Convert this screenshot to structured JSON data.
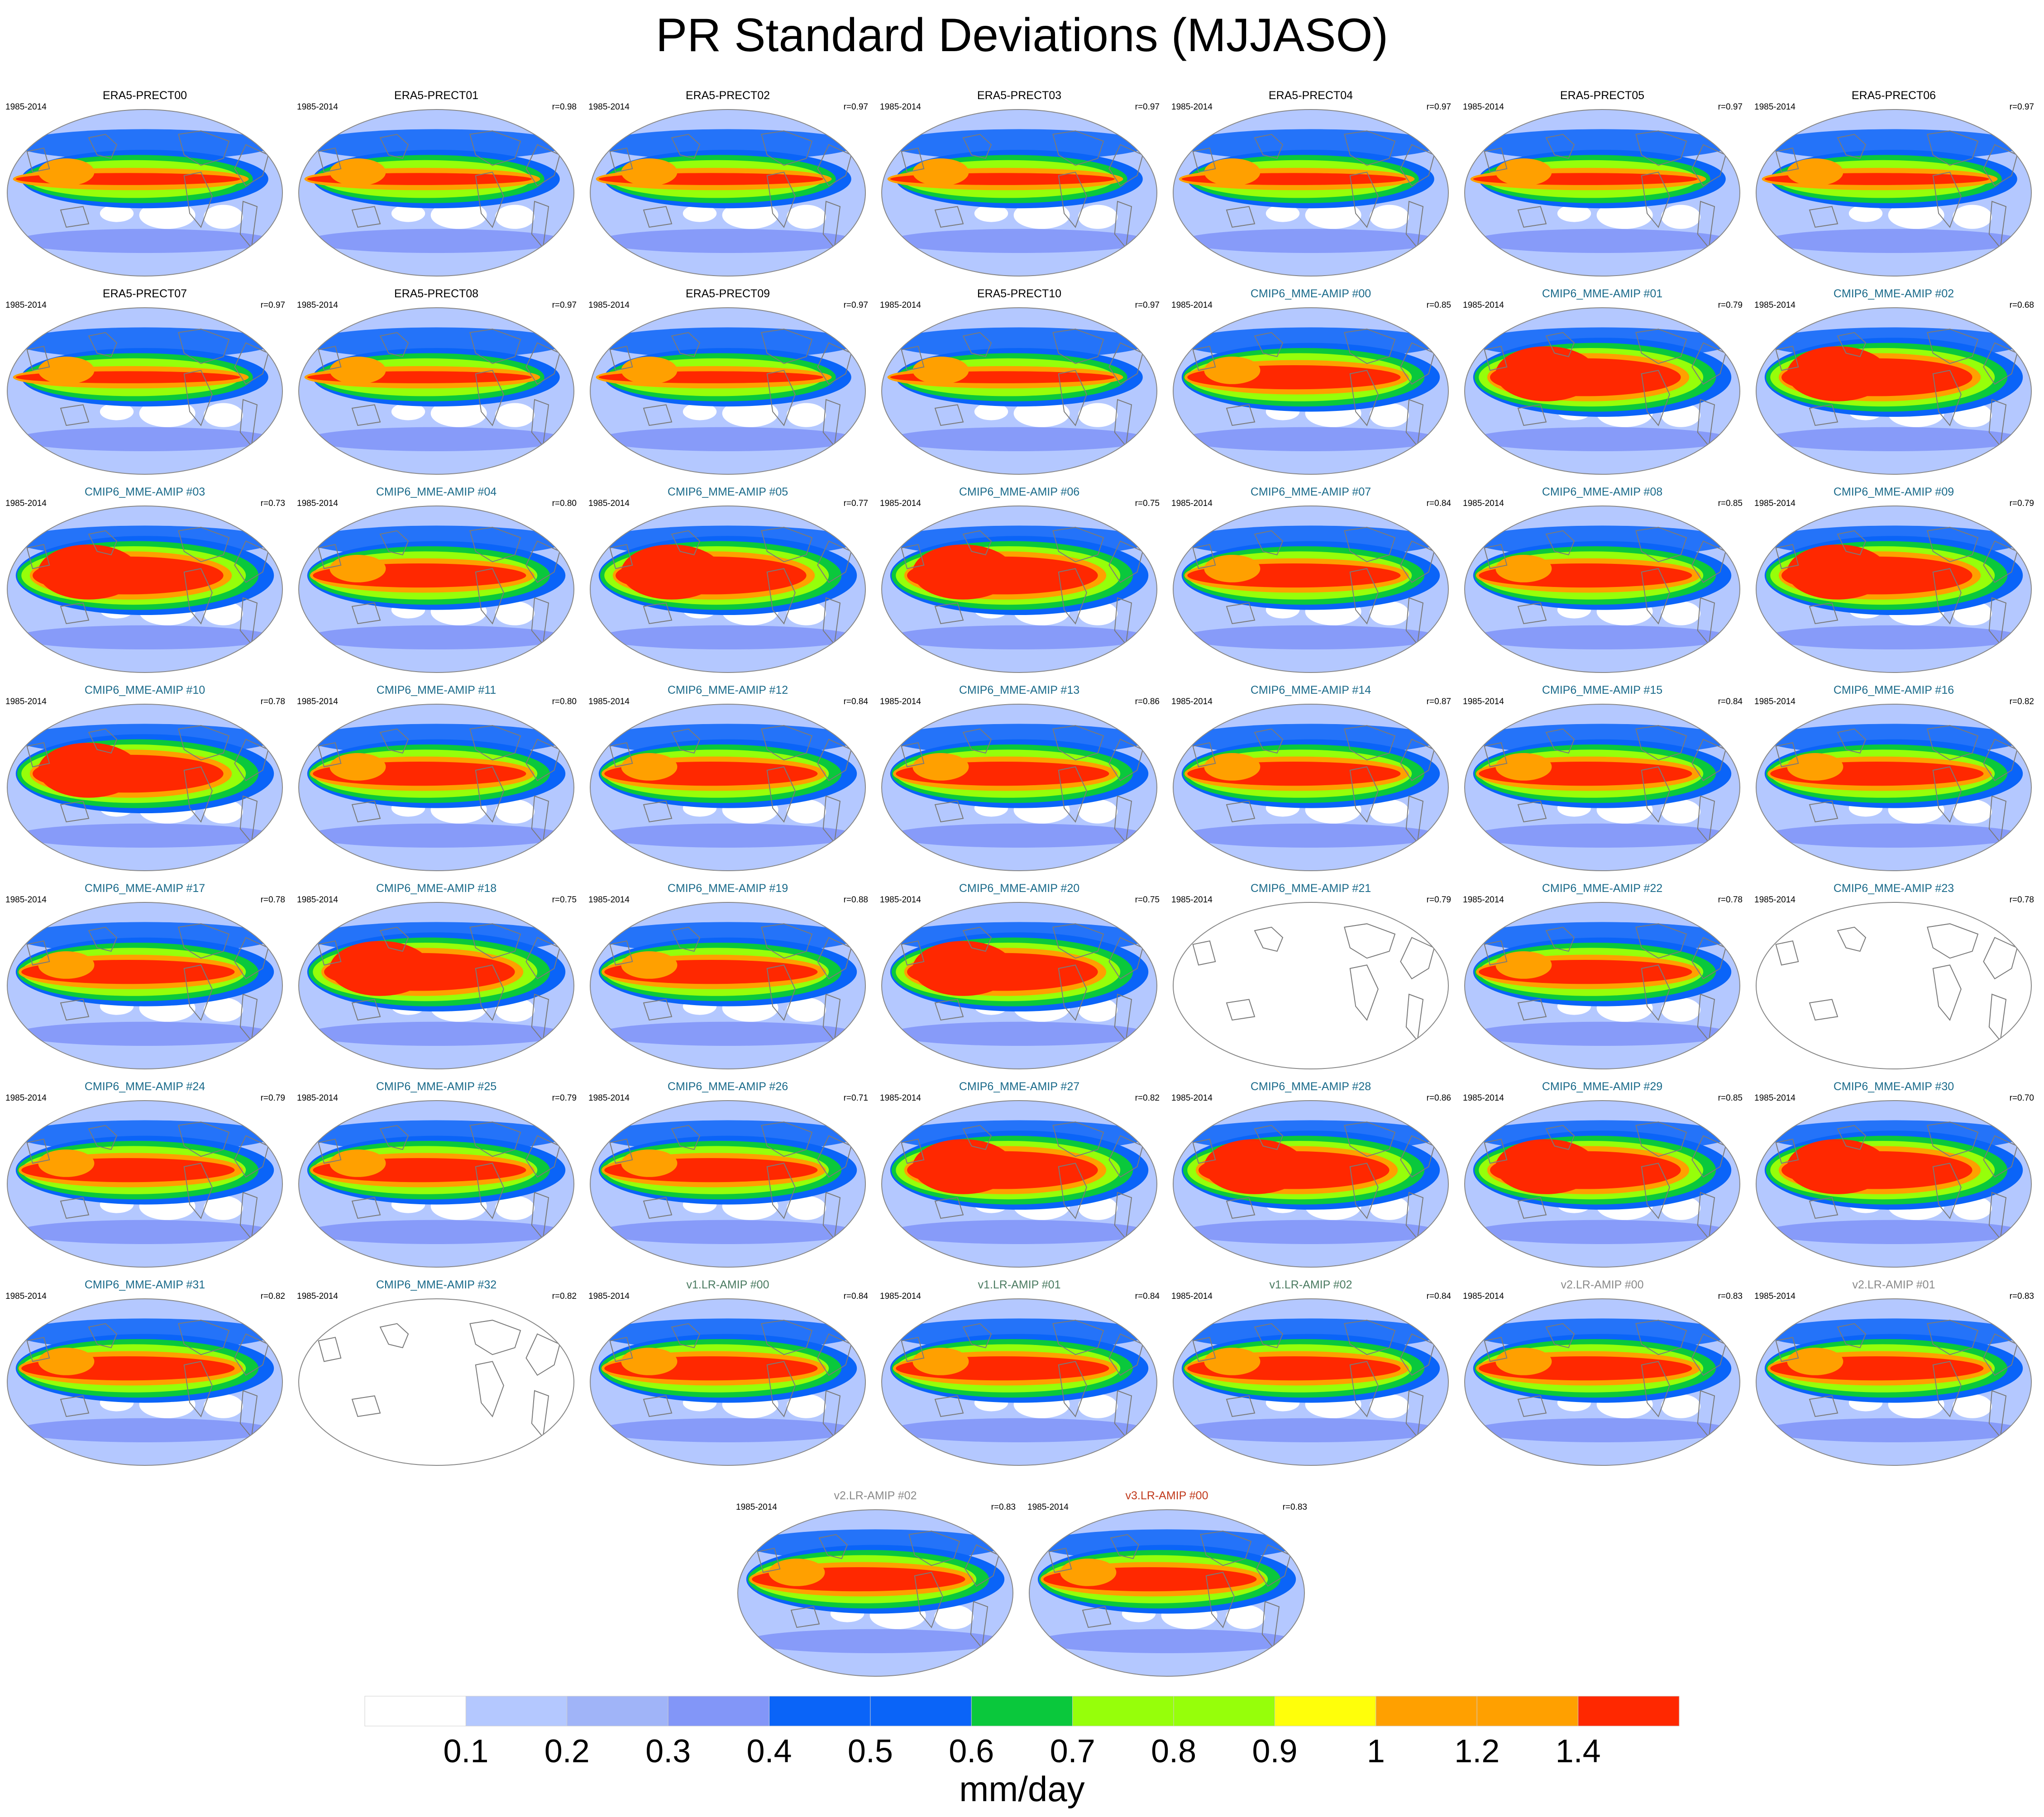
{
  "title": "PR Standard Deviations (MJJASO)",
  "colors": {
    "era5_title": "#000000",
    "cmip6_title": "#1a6a8a",
    "v1_title": "#4a7a60",
    "v2_title": "#8a8a8a",
    "v3_title": "#c0391b",
    "coast": "#7a7a7a"
  },
  "chart_data": {
    "type": "heatmap",
    "map_projection": "robinson",
    "period": "1985-2014",
    "units": "mm/day",
    "colorbar": {
      "levels": [
        "0.1",
        "0.2",
        "0.3",
        "0.4",
        "0.5",
        "0.6",
        "0.7",
        "0.8",
        "0.9",
        "1",
        "1.2",
        "1.4"
      ],
      "colors": [
        "#ffffff",
        "#b4c8ff",
        "#a0b4f8",
        "#8296f8",
        "#0a64f8",
        "#0a64f8",
        "#0ac83c",
        "#96ff0a",
        "#96ff0a",
        "#ffff0a",
        "#ffa000",
        "#ffa000",
        "#ff2800"
      ]
    },
    "panels": [
      {
        "title": "ERA5-PRECT00",
        "period": "1985-2014",
        "corr": "",
        "group": "era5",
        "pattern": 0
      },
      {
        "title": "ERA5-PRECT01",
        "period": "1985-2014",
        "corr": "r=0.98",
        "group": "era5",
        "pattern": 0
      },
      {
        "title": "ERA5-PRECT02",
        "period": "1985-2014",
        "corr": "r=0.97",
        "group": "era5",
        "pattern": 0
      },
      {
        "title": "ERA5-PRECT03",
        "period": "1985-2014",
        "corr": "r=0.97",
        "group": "era5",
        "pattern": 0
      },
      {
        "title": "ERA5-PRECT04",
        "period": "1985-2014",
        "corr": "r=0.97",
        "group": "era5",
        "pattern": 0
      },
      {
        "title": "ERA5-PRECT05",
        "period": "1985-2014",
        "corr": "r=0.97",
        "group": "era5",
        "pattern": 0
      },
      {
        "title": "ERA5-PRECT06",
        "period": "1985-2014",
        "corr": "r=0.97",
        "group": "era5",
        "pattern": 0
      },
      {
        "title": "ERA5-PRECT07",
        "period": "1985-2014",
        "corr": "r=0.97",
        "group": "era5",
        "pattern": 0
      },
      {
        "title": "ERA5-PRECT08",
        "period": "1985-2014",
        "corr": "r=0.97",
        "group": "era5",
        "pattern": 0
      },
      {
        "title": "ERA5-PRECT09",
        "period": "1985-2014",
        "corr": "r=0.97",
        "group": "era5",
        "pattern": 0
      },
      {
        "title": "ERA5-PRECT10",
        "period": "1985-2014",
        "corr": "r=0.97",
        "group": "era5",
        "pattern": 0
      },
      {
        "title": "CMIP6_MME-AMIP  #00",
        "period": "1985-2014",
        "corr": "r=0.85",
        "group": "cmip6",
        "pattern": 1
      },
      {
        "title": "CMIP6_MME-AMIP  #01",
        "period": "1985-2014",
        "corr": "r=0.79",
        "group": "cmip6",
        "pattern": 2
      },
      {
        "title": "CMIP6_MME-AMIP  #02",
        "period": "1985-2014",
        "corr": "r=0.68",
        "group": "cmip6",
        "pattern": 2
      },
      {
        "title": "CMIP6_MME-AMIP  #03",
        "period": "1985-2014",
        "corr": "r=0.73",
        "group": "cmip6",
        "pattern": 2
      },
      {
        "title": "CMIP6_MME-AMIP  #04",
        "period": "1985-2014",
        "corr": "r=0.80",
        "group": "cmip6",
        "pattern": 1
      },
      {
        "title": "CMIP6_MME-AMIP  #05",
        "period": "1985-2014",
        "corr": "r=0.77",
        "group": "cmip6",
        "pattern": 2
      },
      {
        "title": "CMIP6_MME-AMIP  #06",
        "period": "1985-2014",
        "corr": "r=0.75",
        "group": "cmip6",
        "pattern": 2
      },
      {
        "title": "CMIP6_MME-AMIP  #07",
        "period": "1985-2014",
        "corr": "r=0.84",
        "group": "cmip6",
        "pattern": 1
      },
      {
        "title": "CMIP6_MME-AMIP  #08",
        "period": "1985-2014",
        "corr": "r=0.85",
        "group": "cmip6",
        "pattern": 1
      },
      {
        "title": "CMIP6_MME-AMIP  #09",
        "period": "1985-2014",
        "corr": "r=0.79",
        "group": "cmip6",
        "pattern": 2
      },
      {
        "title": "CMIP6_MME-AMIP  #10",
        "period": "1985-2014",
        "corr": "r=0.78",
        "group": "cmip6",
        "pattern": 2
      },
      {
        "title": "CMIP6_MME-AMIP  #11",
        "period": "1985-2014",
        "corr": "r=0.80",
        "group": "cmip6",
        "pattern": 1
      },
      {
        "title": "CMIP6_MME-AMIP  #12",
        "period": "1985-2014",
        "corr": "r=0.84",
        "group": "cmip6",
        "pattern": 1
      },
      {
        "title": "CMIP6_MME-AMIP  #13",
        "period": "1985-2014",
        "corr": "r=0.86",
        "group": "cmip6",
        "pattern": 1
      },
      {
        "title": "CMIP6_MME-AMIP  #14",
        "period": "1985-2014",
        "corr": "r=0.87",
        "group": "cmip6",
        "pattern": 1
      },
      {
        "title": "CMIP6_MME-AMIP  #15",
        "period": "1985-2014",
        "corr": "r=0.84",
        "group": "cmip6",
        "pattern": 1
      },
      {
        "title": "CMIP6_MME-AMIP  #16",
        "period": "1985-2014",
        "corr": "r=0.82",
        "group": "cmip6",
        "pattern": 1
      },
      {
        "title": "CMIP6_MME-AMIP  #17",
        "period": "1985-2014",
        "corr": "r=0.78",
        "group": "cmip6",
        "pattern": 1
      },
      {
        "title": "CMIP6_MME-AMIP  #18",
        "period": "1985-2014",
        "corr": "r=0.75",
        "group": "cmip6",
        "pattern": 2
      },
      {
        "title": "CMIP6_MME-AMIP  #19",
        "period": "1985-2014",
        "corr": "r=0.88",
        "group": "cmip6",
        "pattern": 1
      },
      {
        "title": "CMIP6_MME-AMIP  #20",
        "period": "1985-2014",
        "corr": "r=0.75",
        "group": "cmip6",
        "pattern": 2
      },
      {
        "title": "CMIP6_MME-AMIP  #21",
        "period": "1985-2014",
        "corr": "r=0.79",
        "group": "cmip6",
        "pattern": 3
      },
      {
        "title": "CMIP6_MME-AMIP  #22",
        "period": "1985-2014",
        "corr": "r=0.78",
        "group": "cmip6",
        "pattern": 1
      },
      {
        "title": "CMIP6_MME-AMIP  #23",
        "period": "1985-2014",
        "corr": "r=0.78",
        "group": "cmip6",
        "pattern": 3
      },
      {
        "title": "CMIP6_MME-AMIP  #24",
        "period": "1985-2014",
        "corr": "r=0.79",
        "group": "cmip6",
        "pattern": 1
      },
      {
        "title": "CMIP6_MME-AMIP  #25",
        "period": "1985-2014",
        "corr": "r=0.79",
        "group": "cmip6",
        "pattern": 1
      },
      {
        "title": "CMIP6_MME-AMIP  #26",
        "period": "1985-2014",
        "corr": "r=0.71",
        "group": "cmip6",
        "pattern": 1
      },
      {
        "title": "CMIP6_MME-AMIP  #27",
        "period": "1985-2014",
        "corr": "r=0.82",
        "group": "cmip6",
        "pattern": 2
      },
      {
        "title": "CMIP6_MME-AMIP  #28",
        "period": "1985-2014",
        "corr": "r=0.86",
        "group": "cmip6",
        "pattern": 2
      },
      {
        "title": "CMIP6_MME-AMIP  #29",
        "period": "1985-2014",
        "corr": "r=0.85",
        "group": "cmip6",
        "pattern": 2
      },
      {
        "title": "CMIP6_MME-AMIP  #30",
        "period": "1985-2014",
        "corr": "r=0.70",
        "group": "cmip6",
        "pattern": 2
      },
      {
        "title": "CMIP6_MME-AMIP  #31",
        "period": "1985-2014",
        "corr": "r=0.82",
        "group": "cmip6",
        "pattern": 1
      },
      {
        "title": "CMIP6_MME-AMIP  #32",
        "period": "1985-2014",
        "corr": "r=0.82",
        "group": "cmip6",
        "pattern": 3
      },
      {
        "title": "v1.LR-AMIP  #00",
        "period": "1985-2014",
        "corr": "r=0.84",
        "group": "v1",
        "pattern": 1
      },
      {
        "title": "v1.LR-AMIP  #01",
        "period": "1985-2014",
        "corr": "r=0.84",
        "group": "v1",
        "pattern": 1
      },
      {
        "title": "v1.LR-AMIP  #02",
        "period": "1985-2014",
        "corr": "r=0.84",
        "group": "v1",
        "pattern": 1
      },
      {
        "title": "v2.LR-AMIP  #00",
        "period": "1985-2014",
        "corr": "r=0.83",
        "group": "v2",
        "pattern": 1
      },
      {
        "title": "v2.LR-AMIP  #01",
        "period": "1985-2014",
        "corr": "r=0.83",
        "group": "v2",
        "pattern": 1
      },
      {
        "title": "v2.LR-AMIP  #02",
        "period": "1985-2014",
        "corr": "r=0.83",
        "group": "v2",
        "pattern": 1
      },
      {
        "title": "v3.LR-AMIP  #00",
        "period": "1985-2014",
        "corr": "r=0.83",
        "group": "v3",
        "pattern": 1
      }
    ]
  }
}
